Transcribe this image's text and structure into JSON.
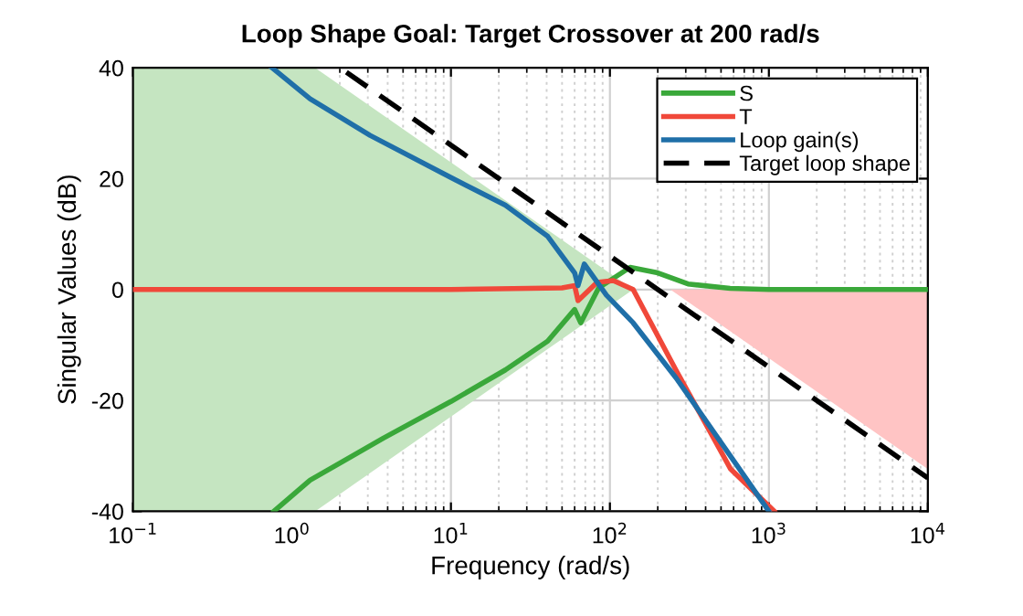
{
  "chart_data": {
    "type": "line",
    "title": "Loop Shape Goal: Target Crossover at 200 rad/s",
    "xlabel": "Frequency (rad/s)",
    "ylabel": "Singular Values (dB)",
    "log": "x",
    "xlim": [
      0.1,
      10000
    ],
    "ylim": [
      -40,
      40
    ],
    "xticks": [
      {
        "value": 0.1,
        "label": "10$^{−1}$"
      },
      {
        "value": 1,
        "label": "10$^{0}$"
      },
      {
        "value": 10,
        "label": "10$^{1}$"
      },
      {
        "value": 100,
        "label": "10$^{2}$"
      },
      {
        "value": 1000,
        "label": "10$^{3}$"
      },
      {
        "value": 10000,
        "label": "10$^{4}$"
      }
    ],
    "yticks": [
      -40,
      -20,
      0,
      20,
      40
    ],
    "grid": true,
    "legend": "top right",
    "line_style": "solid",
    "marker": "none",
    "series": [
      {
        "type": "area",
        "color": "#c5e5c1",
        "x": [
          0.1,
          1.4,
          140
        ],
        "values": [
          40,
          40,
          0
        ]
      },
      {
        "type": "area",
        "color": "#c5e5c1",
        "x": [
          0.1,
          1.4,
          140
        ],
        "values": [
          -40,
          -40,
          0
        ]
      },
      {
        "type": "area",
        "color": "#ffc4c4",
        "x": [
          240,
          10000
        ],
        "values": [
          0,
          -32.4
        ]
      },
      {
        "name": "S",
        "color": "#3aa83a",
        "x": [
          0.77,
          1.3,
          3.76,
          10,
          22,
          40.6,
          60,
          65.5,
          85,
          134,
          200,
          310,
          570,
          1000,
          10000
        ],
        "values": [
          -40,
          -34.4,
          -26.8,
          -20.2,
          -14.5,
          -9.3,
          -3.6,
          -6,
          0.3,
          4.0,
          3.0,
          1.0,
          0.2,
          0,
          0
        ]
      },
      {
        "name": "T",
        "color": "#f0483a",
        "x": [
          0.1,
          10,
          50,
          60,
          63,
          83,
          105,
          140,
          260,
          575,
          1080
        ],
        "values": [
          0,
          0,
          0.3,
          0.7,
          -2,
          1.3,
          1.6,
          0,
          -14.5,
          -32.4,
          -40
        ]
      },
      {
        "name": "Loop gain(s)",
        "color": "#1f6fa8",
        "x": [
          0.75,
          1.3,
          3.1,
          10,
          22,
          40.6,
          60,
          63,
          69,
          95,
          140,
          260,
          1000
        ],
        "values": [
          40,
          34.4,
          27.8,
          20.2,
          15.2,
          9.6,
          3.0,
          0.7,
          4.6,
          -1.0,
          -6,
          -15.9,
          -40
        ]
      },
      {
        "name": "Target loop shape",
        "color": "#000000",
        "line_style": "dashed",
        "x": [
          2.2,
          10000
        ],
        "values": [
          39.2,
          -34.0
        ]
      }
    ]
  }
}
